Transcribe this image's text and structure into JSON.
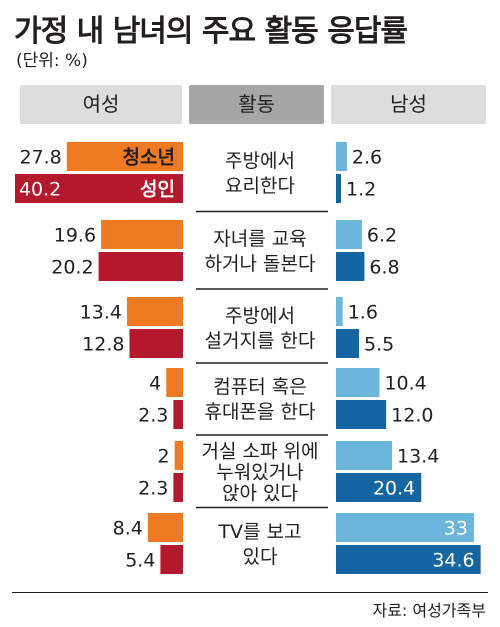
{
  "title": "가정 내 남녀의 주요 활동 응답률",
  "unit": "(단위: %)",
  "headers": {
    "female": "여성",
    "activity": "활동",
    "male": "남성"
  },
  "series_labels": {
    "youth": "청소년",
    "adult": "성인"
  },
  "source": "자료: 여성가족부",
  "colors": {
    "female_youth": "#f07a22",
    "female_adult": "#b4182c",
    "male_youth": "#6bb7dc",
    "male_adult": "#1466a2"
  },
  "chart_data": {
    "type": "bar",
    "title": "가정 내 남녀의 주요 활동 응답률",
    "unit": "%",
    "categories": [
      [
        "주방에서",
        "요리한다"
      ],
      [
        "자녀를 교육",
        "하거나 돌본다"
      ],
      [
        "주방에서",
        "설거지를 한다"
      ],
      [
        "컴퓨터 혹은",
        "휴대폰을 한다"
      ],
      [
        "거실 소파 위에",
        "누워있거나",
        "앉아 있다"
      ],
      [
        "TV를 보고",
        "있다"
      ]
    ],
    "series": [
      {
        "name": "여성 청소년",
        "values": [
          27.8,
          19.6,
          13.4,
          4,
          2,
          8.4
        ],
        "labels": [
          "27.8",
          "19.6",
          "13.4",
          "4",
          "2",
          "8.4"
        ]
      },
      {
        "name": "여성 성인",
        "values": [
          40.2,
          20.2,
          12.8,
          2.3,
          2.3,
          5.4
        ],
        "labels": [
          "40.2",
          "20.2",
          "12.8",
          "2.3",
          "2.3",
          "5.4"
        ]
      },
      {
        "name": "남성 청소년",
        "values": [
          2.6,
          6.2,
          1.6,
          10.4,
          13.4,
          33
        ],
        "labels": [
          "2.6",
          "6.2",
          "1.6",
          "10.4",
          "13.4",
          "33"
        ]
      },
      {
        "name": "남성 성인",
        "values": [
          1.2,
          6.8,
          5.5,
          12.0,
          20.4,
          34.6
        ],
        "labels": [
          "1.2",
          "6.8",
          "5.5",
          "12.0",
          "20.4",
          "34.6"
        ]
      }
    ]
  }
}
